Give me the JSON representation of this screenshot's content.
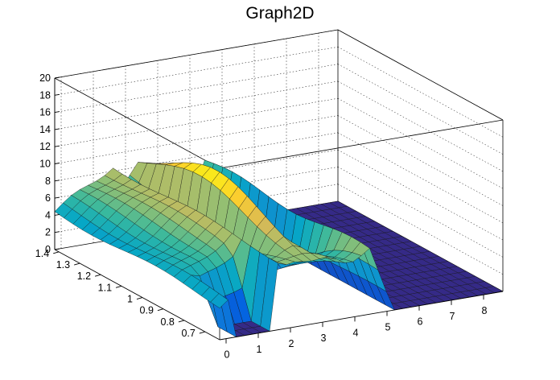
{
  "chart_data": {
    "type": "surface",
    "title": "Graph2D",
    "x": {
      "range": [
        -0.2,
        8.6
      ],
      "ticks": [
        0,
        1,
        2,
        3,
        4,
        5,
        6,
        7,
        8
      ],
      "tick_labels": [
        "0",
        "1",
        "2",
        "3",
        "4",
        "5",
        "6",
        "7",
        "8"
      ]
    },
    "y": {
      "range": [
        0.63,
        1.42
      ],
      "ticks": [
        0.7,
        0.8,
        0.9,
        1.0,
        1.1,
        1.2,
        1.3,
        1.4
      ],
      "tick_labels": [
        "0.7",
        "0.8",
        "0.9",
        "1",
        "1.1",
        "1.2",
        "1.3",
        "1.4"
      ]
    },
    "z": {
      "range": [
        0,
        20
      ],
      "ticks": [
        0,
        2,
        4,
        6,
        8,
        10,
        12,
        14,
        16,
        18,
        20
      ],
      "tick_labels": [
        "0",
        "2",
        "4",
        "6",
        "8",
        "10",
        "12",
        "14",
        "16",
        "18",
        "20"
      ]
    },
    "grid": true,
    "palette": [
      "#352a87",
      "#0363e1",
      "#1485d4",
      "#06a7c6",
      "#38b99e",
      "#92bf73",
      "#d9ba56",
      "#fcce2e",
      "#f9fb0e"
    ],
    "surface_note_values": {
      "left_plateau_height": 4,
      "ridge_peak_height": 12,
      "right_floor_height": 0
    }
  }
}
